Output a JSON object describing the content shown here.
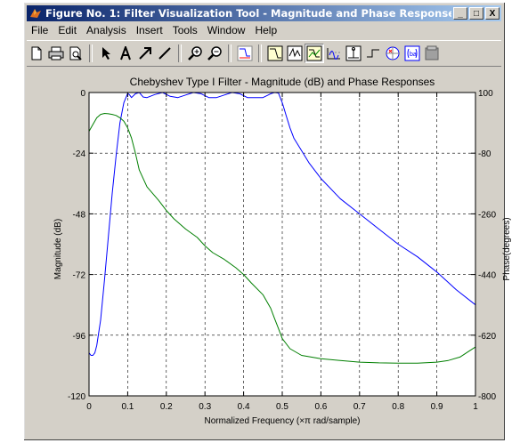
{
  "window": {
    "title": "Figure No. 1: Filter Visualization Tool - Magnitude and Phase Response",
    "min_label": "_",
    "max_label": "□",
    "close_label": "X"
  },
  "menu": [
    "File",
    "Edit",
    "Analysis",
    "Insert",
    "Tools",
    "Window",
    "Help"
  ],
  "toolbar": {
    "icons": [
      "new-file-icon",
      "print-icon",
      "print-preview-icon",
      "pointer-arrow-icon",
      "text-insert-icon",
      "arrow-insert-icon",
      "line-insert-icon",
      "zoom-in-icon",
      "zoom-out-icon",
      "filter-specs-icon",
      "magnitude-response-icon",
      "phase-response-icon",
      "magnitude-phase-icon",
      "group-delay-icon",
      "impulse-response-icon",
      "step-response-icon",
      "pole-zero-icon",
      "filter-coefficients-icon",
      "filter-info-icon"
    ]
  },
  "chart_data": {
    "type": "line",
    "title": "Chebyshev Type I Filter - Magnitude (dB) and Phase Responses",
    "xlabel": "Normalized Frequency  (×π rad/sample)",
    "ylabel_left": "Magnitude (dB)",
    "ylabel_right": "Phase(degrees)",
    "xlim": [
      0,
      1
    ],
    "ylim_left": [
      -120,
      0
    ],
    "ylim_right": [
      -800,
      100
    ],
    "xticks": [
      "0",
      "0.1",
      "0.2",
      "0.3",
      "0.4",
      "0.5",
      "0.6",
      "0.7",
      "0.8",
      "0.9",
      "1"
    ],
    "yticks_left": [
      "0",
      "-24",
      "-48",
      "-72",
      "-96",
      "-120"
    ],
    "yticks_right": [
      "100",
      "-80",
      "-260",
      "-440",
      "-620",
      "-800"
    ],
    "grid": true,
    "series": [
      {
        "axis": "left",
        "color": "#0000ff",
        "x": [
          0,
          0.005,
          0.01,
          0.015,
          0.02,
          0.03,
          0.04,
          0.05,
          0.06,
          0.07,
          0.08,
          0.09,
          0.1,
          0.105,
          0.11,
          0.12,
          0.13,
          0.14,
          0.15,
          0.17,
          0.19,
          0.21,
          0.23,
          0.25,
          0.27,
          0.29,
          0.31,
          0.33,
          0.35,
          0.37,
          0.39,
          0.41,
          0.43,
          0.45,
          0.47,
          0.48,
          0.49,
          0.5,
          0.51,
          0.52,
          0.53,
          0.55,
          0.57,
          0.6,
          0.65,
          0.7,
          0.75,
          0.8,
          0.85,
          0.9,
          0.95,
          1.0
        ],
        "y": [
          -103,
          -104,
          -104,
          -103,
          -100,
          -90,
          -74,
          -57,
          -40,
          -25,
          -12,
          -4,
          -0.3,
          -1,
          -2,
          -0.5,
          0,
          -1.8,
          -2,
          -0.8,
          0,
          -1.5,
          -2,
          -1,
          0,
          -0.5,
          -2,
          -2,
          -1,
          0,
          -0.5,
          -2,
          -2,
          -2,
          -0.5,
          0,
          -0.2,
          -4,
          -9,
          -14,
          -18,
          -23,
          -28,
          -34,
          -42,
          -48,
          -54,
          -60,
          -65,
          -71,
          -78,
          -84
        ]
      },
      {
        "axis": "right",
        "color": "#007f00",
        "x": [
          0,
          0.01,
          0.02,
          0.03,
          0.04,
          0.05,
          0.06,
          0.07,
          0.08,
          0.09,
          0.1,
          0.11,
          0.12,
          0.13,
          0.15,
          0.18,
          0.2,
          0.22,
          0.25,
          0.28,
          0.3,
          0.32,
          0.35,
          0.38,
          0.4,
          0.42,
          0.45,
          0.47,
          0.48,
          0.49,
          0.5,
          0.52,
          0.55,
          0.6,
          0.65,
          0.7,
          0.75,
          0.8,
          0.85,
          0.9,
          0.93,
          0.96,
          0.98,
          1.0
        ],
        "y": [
          -15,
          5,
          25,
          35,
          38,
          37,
          35,
          32,
          25,
          15,
          -5,
          -35,
          -80,
          -130,
          -180,
          -220,
          -250,
          -275,
          -305,
          -330,
          -355,
          -375,
          -395,
          -420,
          -440,
          -465,
          -500,
          -540,
          -570,
          -600,
          -630,
          -660,
          -680,
          -690,
          -695,
          -700,
          -702,
          -703,
          -703,
          -700,
          -695,
          -685,
          -670,
          -655
        ]
      }
    ]
  }
}
